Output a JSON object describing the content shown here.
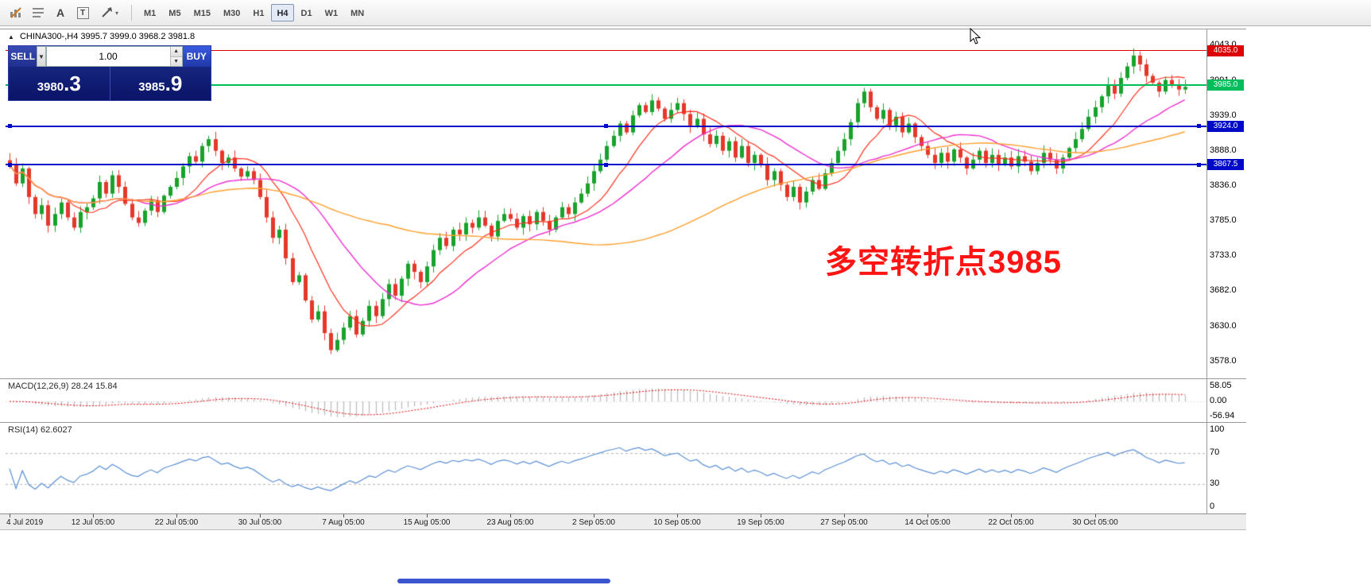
{
  "toolbar": {
    "icons": [
      {
        "name": "chart-style-icon"
      },
      {
        "name": "indicator-list-icon"
      },
      {
        "name": "text-label-icon",
        "glyph": "A"
      },
      {
        "name": "text-box-icon",
        "glyph": "T"
      },
      {
        "name": "draw-arrow-icon",
        "caret": "▾"
      }
    ],
    "timeframes": [
      {
        "label": "M1"
      },
      {
        "label": "M5"
      },
      {
        "label": "M15"
      },
      {
        "label": "M30"
      },
      {
        "label": "H1"
      },
      {
        "label": "H4",
        "active": true
      },
      {
        "label": "D1"
      },
      {
        "label": "W1"
      },
      {
        "label": "MN"
      }
    ]
  },
  "chart": {
    "collapse_glyph": "▲",
    "symbol_header": "CHINA300-,H4  3995.7 3999.0 3968.2 3981.8",
    "trade_panel": {
      "sell_label": "SELL",
      "buy_label": "BUY",
      "volume": "1.00",
      "bid_int": "3980",
      "bid_dec": ".3",
      "ask_int": "3985",
      "ask_dec": ".9",
      "dropdown_glyph": "▼",
      "spin_up_glyph": "▲",
      "spin_down_glyph": "▼"
    },
    "annotation": {
      "text": "多空转折点3985",
      "color": "#ff1414"
    },
    "hlines": [
      {
        "price": 4035.0,
        "label": "4035.0",
        "color": "#dd0000",
        "width": 1,
        "handles": false
      },
      {
        "price": 3985.0,
        "label": "3985.0",
        "color": "#00bd5c",
        "width": 2,
        "handles": false
      },
      {
        "price": 3924.0,
        "label": "3924.0",
        "color": "#0009c8",
        "width": 2,
        "handles": true
      },
      {
        "price": 3867.5,
        "label": "3867.5",
        "color": "#0009c8",
        "width": 2,
        "handles": true
      }
    ],
    "y_axis_labels": [
      "4043.0",
      "3991.0",
      "3939.0",
      "3888.0",
      "3836.0",
      "3785.0",
      "3733.0",
      "3682.0",
      "3630.0",
      "3578.0"
    ]
  },
  "macd": {
    "title": "MACD(12,26,9)",
    "values": "28.24 15.84",
    "axis_labels": [
      "58.05",
      "0.00",
      "-56.94"
    ]
  },
  "rsi": {
    "title": "RSI(14)",
    "value": "62.6027",
    "axis_labels": [
      "100",
      "70",
      "30",
      "0"
    ]
  },
  "time_axis": {
    "labels": [
      {
        "text": "4 Jul 2019",
        "i": 0
      },
      {
        "text": "12 Jul 05:00",
        "i": 13
      },
      {
        "text": "22 Jul 05:00",
        "i": 26
      },
      {
        "text": "30 Jul 05:00",
        "i": 39
      },
      {
        "text": "7 Aug 05:00",
        "i": 52
      },
      {
        "text": "15 Aug 05:00",
        "i": 65
      },
      {
        "text": "23 Aug 05:00",
        "i": 78
      },
      {
        "text": "2 Sep 05:00",
        "i": 91
      },
      {
        "text": "10 Sep 05:00",
        "i": 104
      },
      {
        "text": "19 Sep 05:00",
        "i": 117
      },
      {
        "text": "27 Sep 05:00",
        "i": 130
      },
      {
        "text": "14 Oct 05:00",
        "i": 143
      },
      {
        "text": "22 Oct 05:00",
        "i": 156
      },
      {
        "text": "30 Oct 05:00",
        "i": 169
      }
    ]
  },
  "chart_data": {
    "type": "candlestick",
    "symbol": "CHINA300-",
    "timeframe": "H4",
    "ohlc_current": {
      "open": 3995.7,
      "high": 3999.0,
      "low": 3968.2,
      "close": 3981.8
    },
    "price_axis": {
      "top": 4043.0,
      "bottom": 3578.0
    },
    "closes": [
      3868,
      3840,
      3862,
      3820,
      3795,
      3808,
      3778,
      3795,
      3812,
      3790,
      3775,
      3798,
      3805,
      3818,
      3842,
      3825,
      3852,
      3835,
      3810,
      3790,
      3782,
      3800,
      3815,
      3798,
      3822,
      3835,
      3848,
      3865,
      3880,
      3872,
      3895,
      3905,
      3888,
      3870,
      3878,
      3862,
      3850,
      3858,
      3845,
      3820,
      3790,
      3760,
      3772,
      3730,
      3695,
      3705,
      3668,
      3640,
      3652,
      3620,
      3595,
      3610,
      3628,
      3645,
      3618,
      3638,
      3660,
      3645,
      3670,
      3692,
      3675,
      3700,
      3722,
      3710,
      3695,
      3718,
      3742,
      3760,
      3748,
      3772,
      3765,
      3782,
      3775,
      3790,
      3778,
      3762,
      3785,
      3795,
      3788,
      3775,
      3792,
      3780,
      3798,
      3785,
      3772,
      3790,
      3805,
      3795,
      3812,
      3825,
      3840,
      3858,
      3875,
      3895,
      3910,
      3928,
      3915,
      3940,
      3955,
      3945,
      3962,
      3950,
      3935,
      3948,
      3958,
      3942,
      3925,
      3935,
      3912,
      3898,
      3910,
      3888,
      3902,
      3878,
      3895,
      3870,
      3882,
      3868,
      3845,
      3858,
      3838,
      3820,
      3835,
      3812,
      3828,
      3845,
      3832,
      3855,
      3870,
      3888,
      3905,
      3930,
      3958,
      3975,
      3952,
      3935,
      3948,
      3925,
      3938,
      3915,
      3928,
      3908,
      3895,
      3882,
      3870,
      3885,
      3872,
      3890,
      3878,
      3862,
      3875,
      3888,
      3870,
      3882,
      3868,
      3878,
      3865,
      3880,
      3872,
      3858,
      3870,
      3885,
      3875,
      3862,
      3878,
      3892,
      3905,
      3920,
      3938,
      3952,
      3968,
      3985,
      3972,
      3995,
      4012,
      4028,
      4015,
      3998,
      3988,
      3975,
      3992,
      3985,
      3978,
      3982
    ],
    "ma_periods": {
      "red": 10,
      "magenta": 21,
      "orange": 60
    },
    "ma_colors": {
      "red": "#ff2f1c",
      "magenta": "#ee2fd0",
      "orange": "#ff9f2e"
    },
    "candle_colors": {
      "up": "#18a22c",
      "down": "#e5372a"
    },
    "macd_params": [
      12,
      26,
      9
    ],
    "macd_colors": {
      "histogram": "#bdbdbd",
      "signal": "#e00000"
    },
    "rsi_period": 14,
    "rsi_color": "#5b8fd4",
    "rsi_levels": [
      70,
      30
    ]
  }
}
